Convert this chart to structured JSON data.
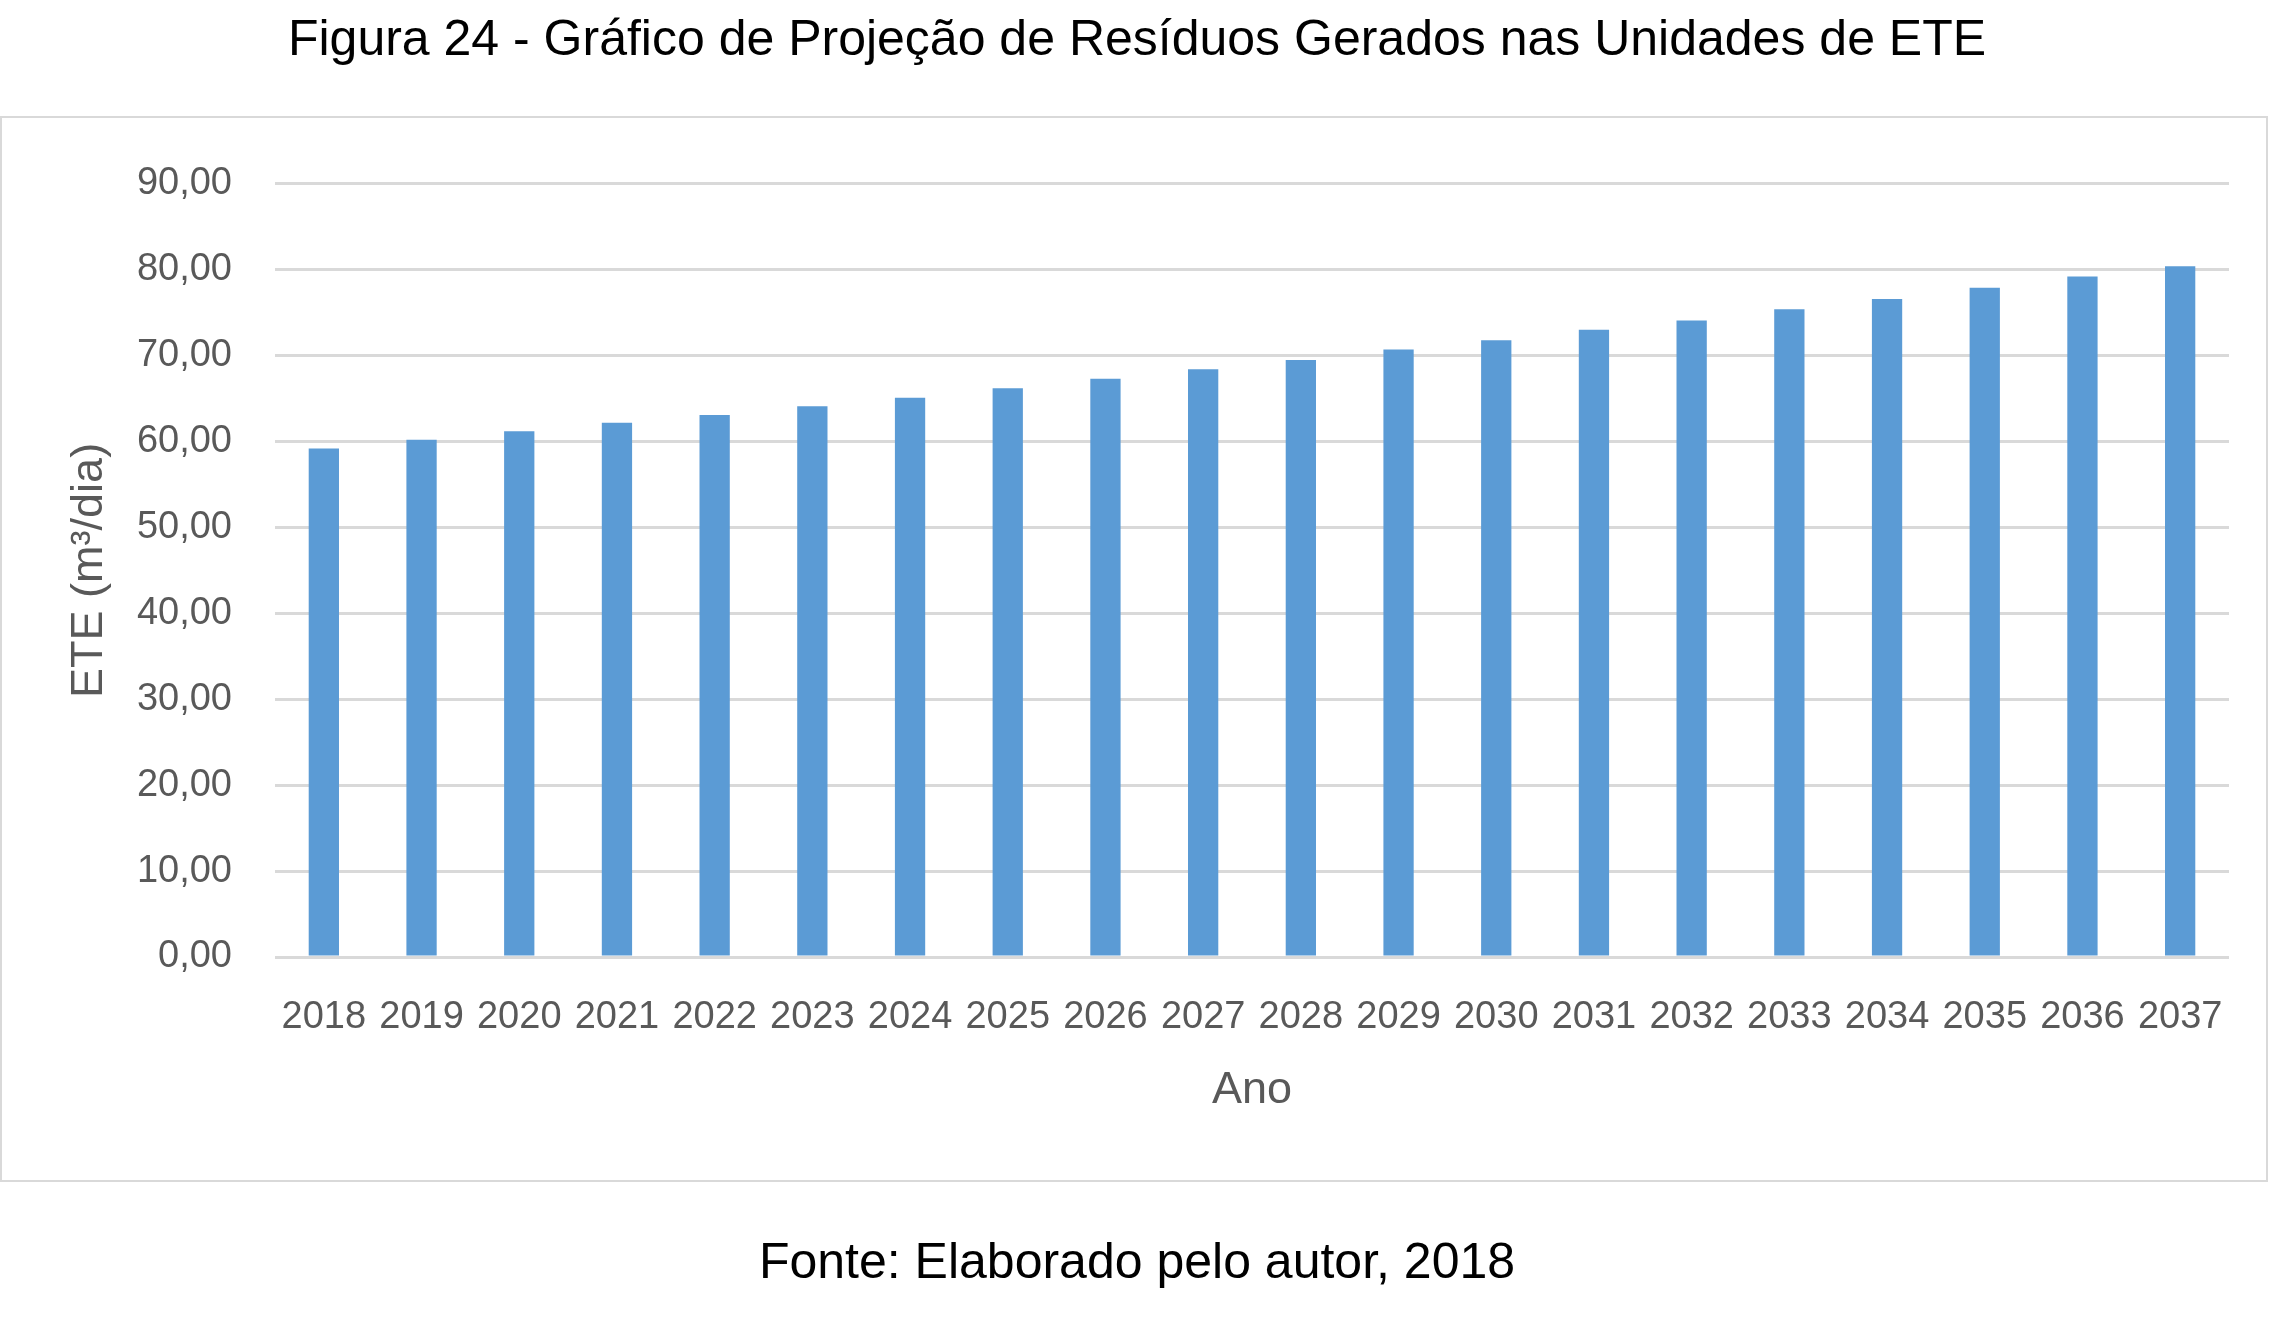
{
  "chart_data": {
    "type": "bar",
    "title": "Figura 24 - Gráfico de Projeção de Resíduos Gerados nas Unidades de ETE",
    "xlabel": "Ano",
    "ylabel": "ETE (m³/dia)",
    "annotations": [
      "Fonte: Elaborado pelo autor, 2018"
    ],
    "categories": [
      "2018",
      "2019",
      "2020",
      "2021",
      "2022",
      "2023",
      "2024",
      "2025",
      "2026",
      "2027",
      "2028",
      "2029",
      "2030",
      "2031",
      "2032",
      "2033",
      "2034",
      "2035",
      "2036",
      "2037"
    ],
    "values": [
      59.2,
      60.2,
      61.2,
      62.2,
      63.1,
      64.1,
      65.1,
      66.2,
      67.3,
      68.4,
      69.5,
      70.7,
      71.8,
      73.0,
      74.1,
      75.4,
      76.6,
      77.9,
      79.2,
      80.4
    ],
    "color": "#5b9bd5",
    "ylim": [
      0,
      90
    ],
    "yticks": [
      {
        "value": 0,
        "label": "0,00"
      },
      {
        "value": 10,
        "label": "10,00"
      },
      {
        "value": 20,
        "label": "20,00"
      },
      {
        "value": 30,
        "label": "30,00"
      },
      {
        "value": 40,
        "label": "40,00"
      },
      {
        "value": 50,
        "label": "50,00"
      },
      {
        "value": 60,
        "label": "60,00"
      },
      {
        "value": 70,
        "label": "70,00"
      },
      {
        "value": 80,
        "label": "80,00"
      },
      {
        "value": 90,
        "label": "90,00"
      }
    ],
    "grid": "y",
    "legend": false
  }
}
